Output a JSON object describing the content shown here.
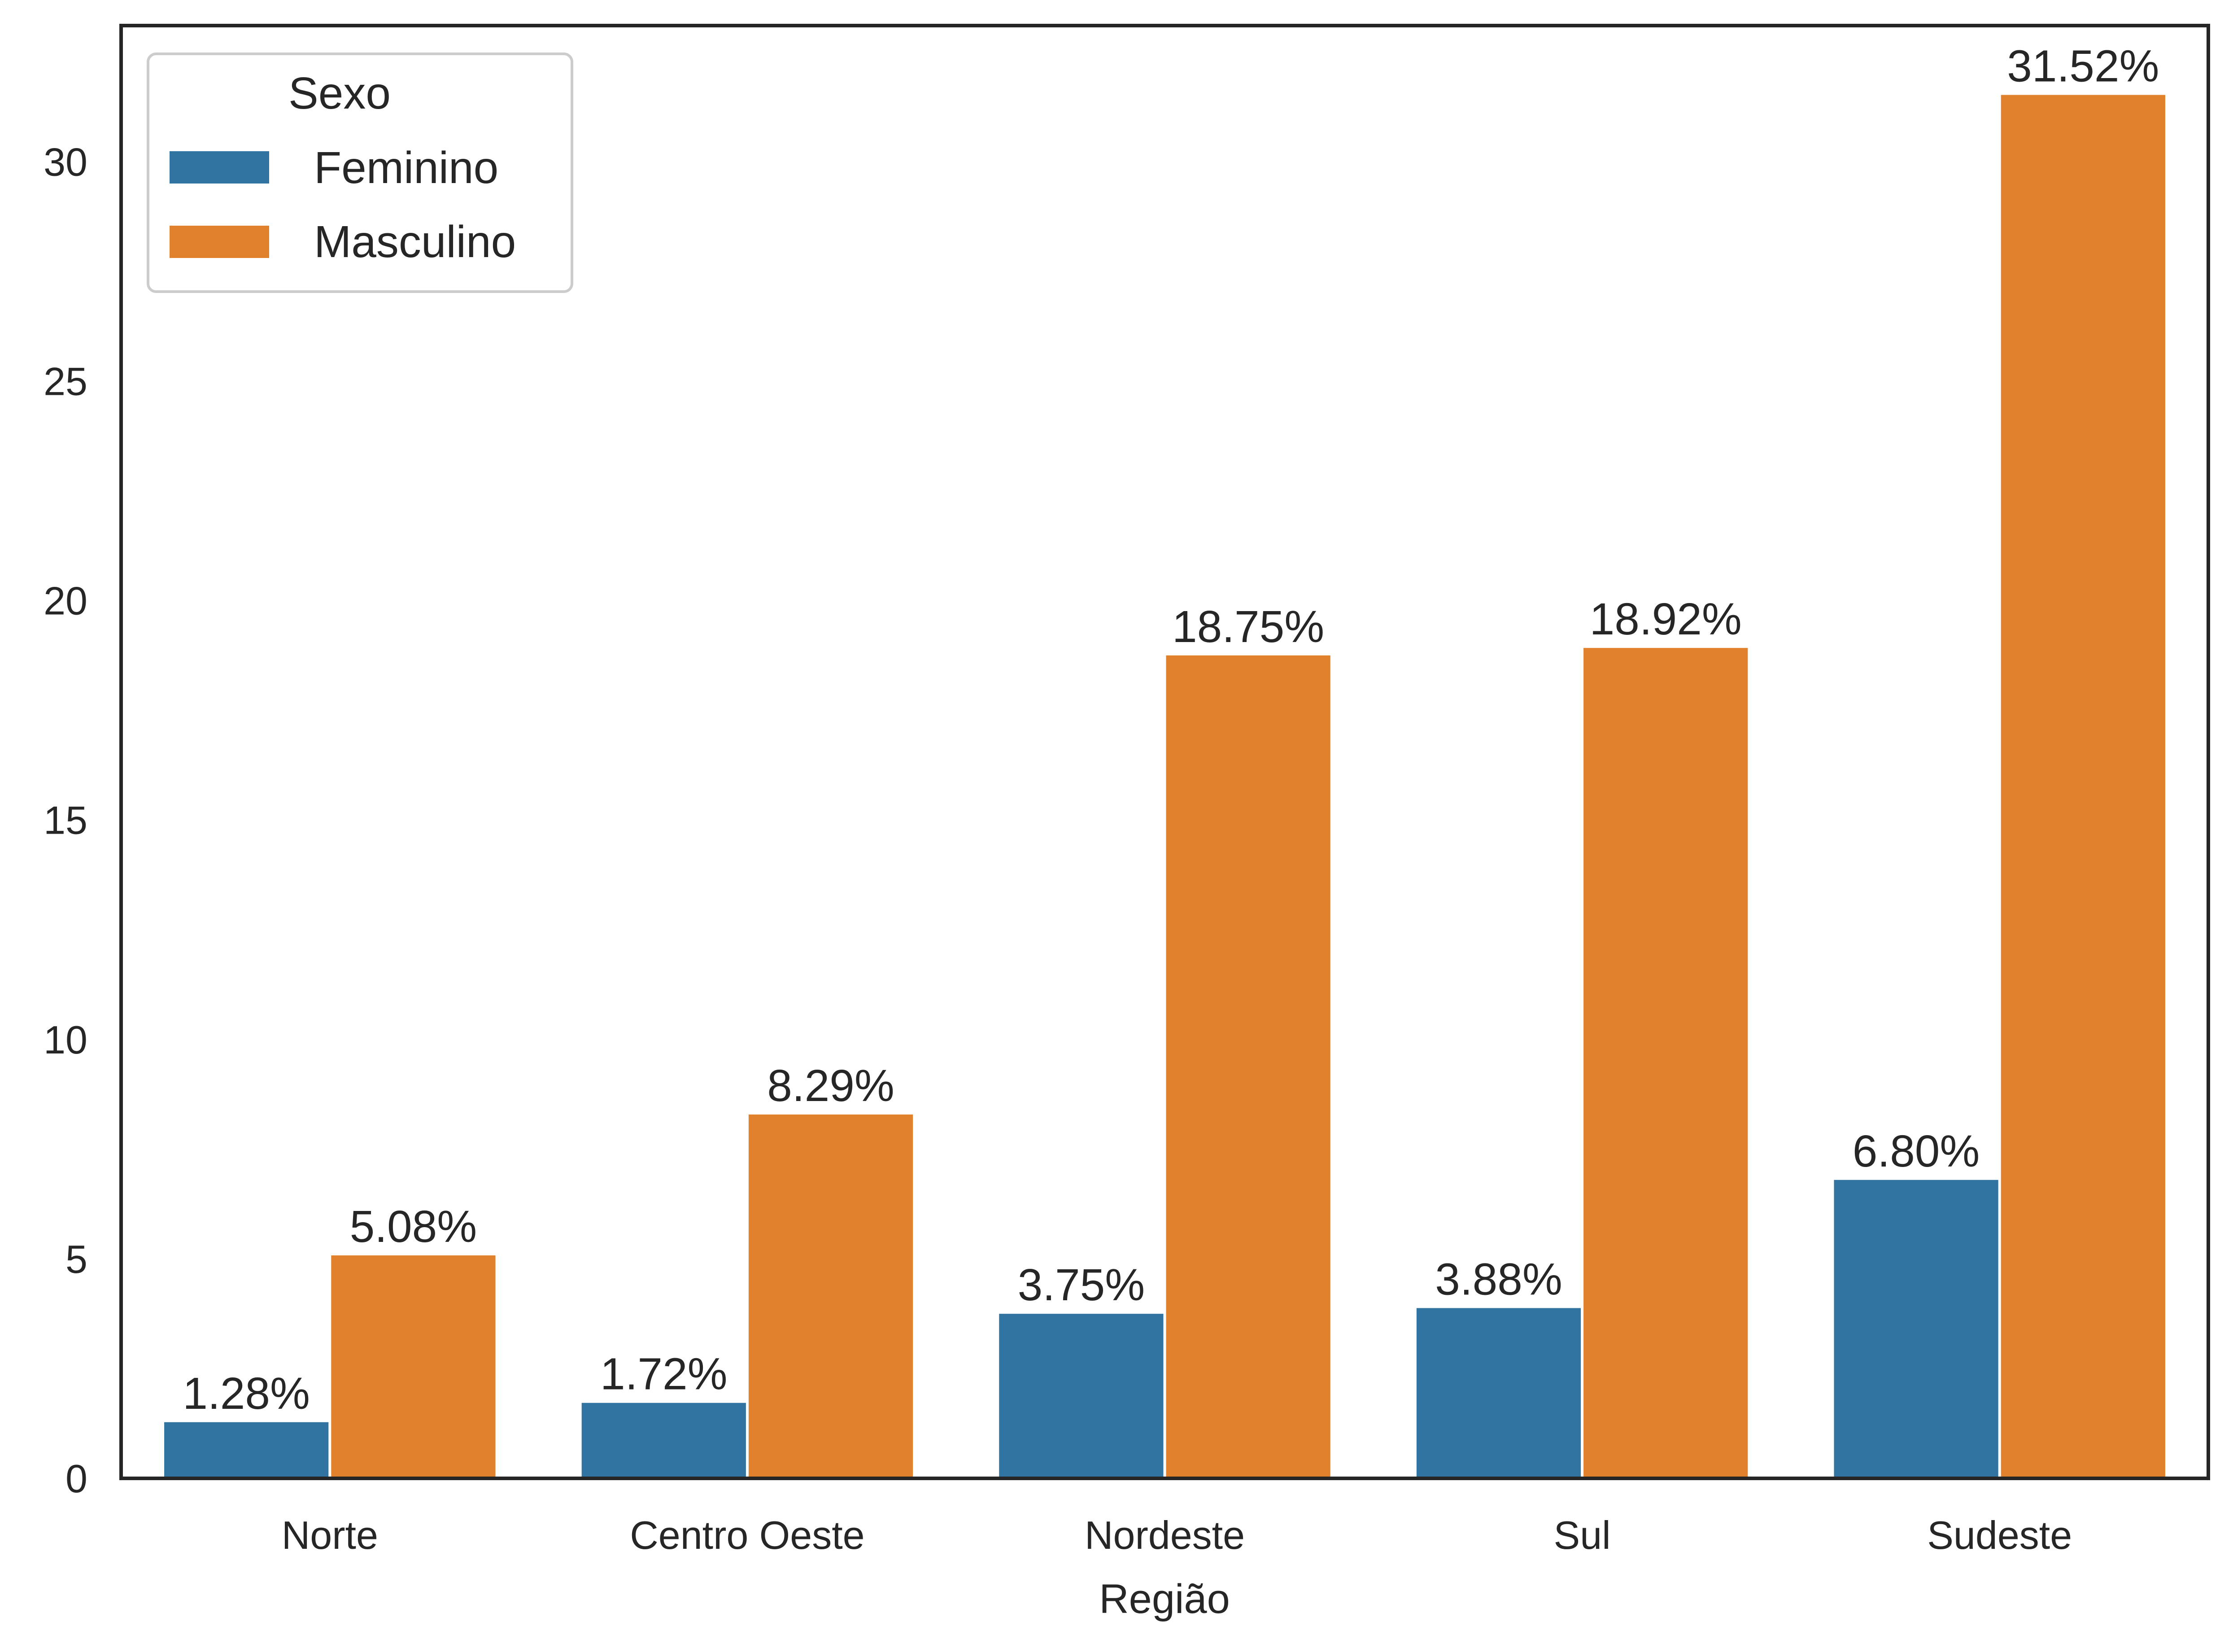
{
  "chart_data": {
    "type": "bar",
    "categories": [
      "Norte",
      "Centro Oeste",
      "Nordeste",
      "Sul",
      "Sudeste"
    ],
    "series": [
      {
        "name": "Feminino",
        "color": "#3274a1",
        "values": [
          1.28,
          1.72,
          3.75,
          3.88,
          6.8
        ],
        "labels": [
          "1.28%",
          "1.72%",
          "3.75%",
          "3.88%",
          "6.80%"
        ]
      },
      {
        "name": "Masculino",
        "color": "#e1812c",
        "values": [
          5.08,
          8.29,
          18.75,
          18.92,
          31.52
        ],
        "labels": [
          "5.08%",
          "8.29%",
          "18.75%",
          "18.92%",
          "31.52%"
        ]
      }
    ],
    "xlabel": "Região",
    "ylabel": "",
    "ylim": [
      0,
      33.1
    ],
    "yticks": [
      0,
      5,
      10,
      15,
      20,
      25,
      30
    ],
    "legend": {
      "title": "Sexo",
      "placement": "top-left"
    },
    "grid": false
  }
}
